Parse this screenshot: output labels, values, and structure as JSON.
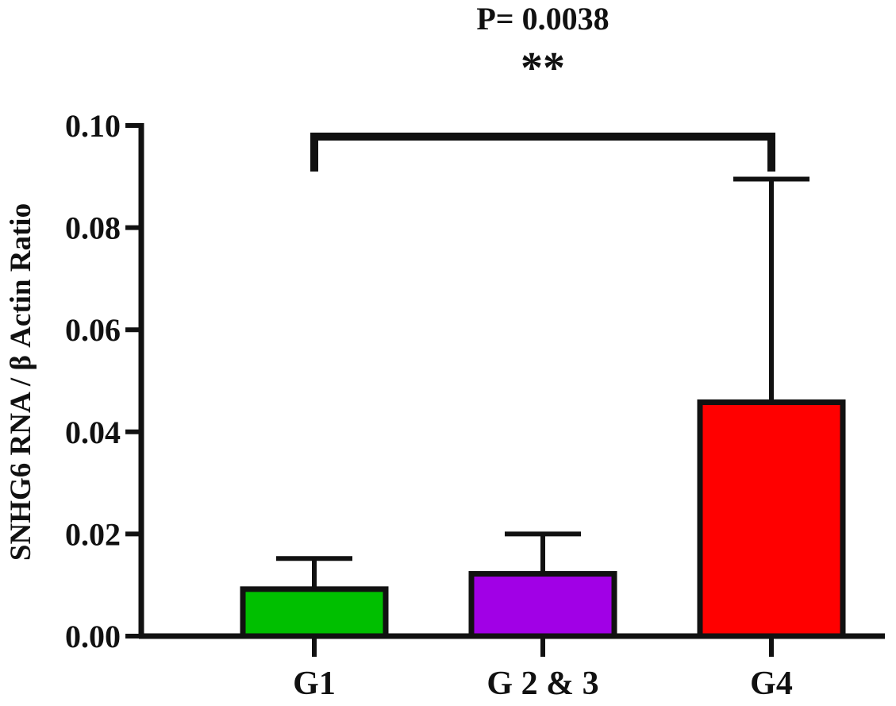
{
  "chart_data": {
    "type": "bar",
    "title": "",
    "xlabel": "",
    "ylabel": "SNHG6 RNA / β Actin Ratio",
    "categories": [
      "G1",
      "G 2 & 3",
      "G4"
    ],
    "values": [
      0.0092,
      0.0122,
      0.0458
    ],
    "error_upper": [
      0.0152,
      0.02,
      0.0895
    ],
    "colors": [
      "#00bf00",
      "#a100e6",
      "#ff0000"
    ],
    "ylim": [
      0,
      0.1
    ],
    "yticks": [
      "0.00",
      "0.02",
      "0.04",
      "0.06",
      "0.08",
      "0.10"
    ],
    "grid": false,
    "significance": {
      "from_category": "G1",
      "to_category": "G4",
      "p_label": "P= 0.0038",
      "stars": "**"
    }
  }
}
